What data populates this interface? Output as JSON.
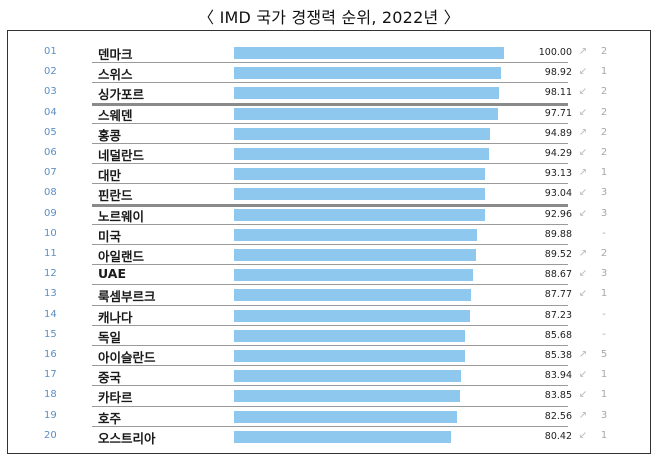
{
  "title": "〈 IMD 국가 경쟁력 순위, 2022년 〉",
  "colors": {
    "bar": "#8ec8ef",
    "rank": "#5b8fc4",
    "arrow": "#b8b8b8"
  },
  "chart_data": {
    "type": "bar",
    "orientation": "horizontal",
    "xlim": [
      0,
      100
    ],
    "rows": [
      {
        "rank": "01",
        "country": "덴마크",
        "score": 100.0,
        "score_label": "100.00",
        "arrow": "↗",
        "change": "2"
      },
      {
        "rank": "02",
        "country": "스위스",
        "score": 98.92,
        "score_label": "98.92",
        "arrow": "↙",
        "change": "1"
      },
      {
        "rank": "03",
        "country": "싱가포르",
        "score": 98.11,
        "score_label": "98.11",
        "arrow": "↙",
        "change": "2"
      },
      {
        "rank": "04",
        "country": "스웨덴",
        "score": 97.71,
        "score_label": "97.71",
        "arrow": "↙",
        "change": "2"
      },
      {
        "rank": "05",
        "country": "홍콩",
        "score": 94.89,
        "score_label": "94.89",
        "arrow": "↗",
        "change": "2"
      },
      {
        "rank": "06",
        "country": "네덜란드",
        "score": 94.29,
        "score_label": "94.29",
        "arrow": "↙",
        "change": "2"
      },
      {
        "rank": "07",
        "country": "대만",
        "score": 93.13,
        "score_label": "93.13",
        "arrow": "↗",
        "change": "1"
      },
      {
        "rank": "08",
        "country": "핀란드",
        "score": 93.04,
        "score_label": "93.04",
        "arrow": "↙",
        "change": "3"
      },
      {
        "rank": "09",
        "country": "노르웨이",
        "score": 92.96,
        "score_label": "92.96",
        "arrow": "↙",
        "change": "3"
      },
      {
        "rank": "10",
        "country": "미국",
        "score": 89.88,
        "score_label": "89.88",
        "arrow": "",
        "change": "-"
      },
      {
        "rank": "11",
        "country": "아일랜드",
        "score": 89.52,
        "score_label": "89.52",
        "arrow": "↗",
        "change": "2"
      },
      {
        "rank": "12",
        "country": "UAE",
        "score": 88.67,
        "score_label": "88.67",
        "arrow": "↙",
        "change": "3"
      },
      {
        "rank": "13",
        "country": "룩셈부르크",
        "score": 87.77,
        "score_label": "87.77",
        "arrow": "↙",
        "change": "1"
      },
      {
        "rank": "14",
        "country": "캐나다",
        "score": 87.23,
        "score_label": "87.23",
        "arrow": "",
        "change": "-"
      },
      {
        "rank": "15",
        "country": "독일",
        "score": 85.68,
        "score_label": "85.68",
        "arrow": "",
        "change": "-"
      },
      {
        "rank": "16",
        "country": "아이슬란드",
        "score": 85.38,
        "score_label": "85.38",
        "arrow": "↗",
        "change": "5"
      },
      {
        "rank": "17",
        "country": "중국",
        "score": 83.94,
        "score_label": "83.94",
        "arrow": "↙",
        "change": "1"
      },
      {
        "rank": "18",
        "country": "카타르",
        "score": 83.85,
        "score_label": "83.85",
        "arrow": "↙",
        "change": "1"
      },
      {
        "rank": "19",
        "country": "호주",
        "score": 82.56,
        "score_label": "82.56",
        "arrow": "↗",
        "change": "3"
      },
      {
        "rank": "20",
        "country": "오스트리아",
        "score": 80.42,
        "score_label": "80.42",
        "arrow": "↙",
        "change": "1"
      }
    ]
  }
}
